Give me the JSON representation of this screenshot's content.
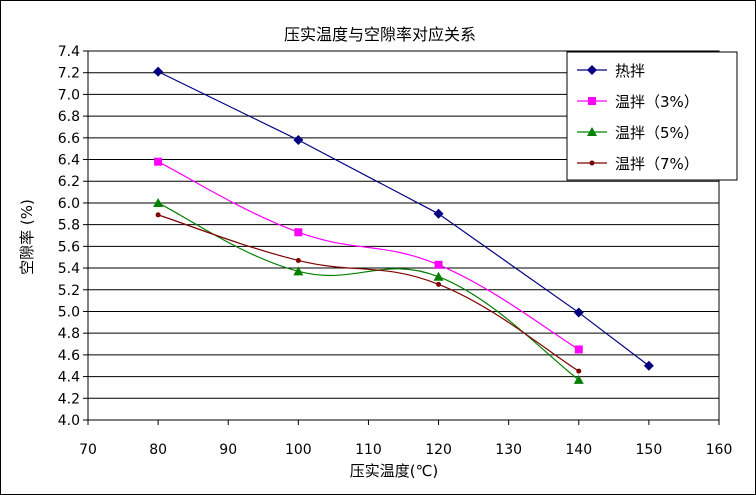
{
  "chart_data": {
    "type": "line",
    "title": "压实温度与空隙率对应关系",
    "xlabel": "压实温度(℃)",
    "ylabel": "空隙率 (%)",
    "xlim": [
      70,
      160
    ],
    "ylim": [
      4.0,
      7.4
    ],
    "x_ticks": [
      70,
      80,
      90,
      100,
      110,
      120,
      130,
      140,
      150,
      160
    ],
    "y_ticks": [
      "4.0",
      "4.2",
      "4.4",
      "4.6",
      "4.8",
      "5.0",
      "5.2",
      "5.4",
      "5.6",
      "5.8",
      "6.0",
      "6.2",
      "6.4",
      "6.6",
      "6.8",
      "7.0",
      "7.2",
      "7.4"
    ],
    "grid": "horizontal",
    "legend_position": "top-right",
    "series": [
      {
        "name": "热拌",
        "color": "#000080",
        "marker": "diamond",
        "smooth": false,
        "x": [
          80,
          100,
          120,
          140,
          150
        ],
        "y": [
          7.21,
          6.58,
          5.9,
          4.99,
          4.5
        ]
      },
      {
        "name": "温拌（3%）",
        "color": "#ff00ff",
        "marker": "square",
        "smooth": true,
        "x": [
          80,
          100,
          120,
          140
        ],
        "y": [
          6.38,
          5.73,
          5.43,
          4.65
        ]
      },
      {
        "name": "温拌（5%）",
        "color": "#008000",
        "marker": "triangle",
        "smooth": true,
        "x": [
          80,
          100,
          120,
          140
        ],
        "y": [
          6.0,
          5.37,
          5.32,
          4.37
        ]
      },
      {
        "name": "温拌（7%）",
        "color": "#800000",
        "marker": "dot",
        "smooth": true,
        "x": [
          80,
          100,
          120,
          140
        ],
        "y": [
          5.89,
          5.47,
          5.25,
          4.45
        ]
      }
    ]
  }
}
